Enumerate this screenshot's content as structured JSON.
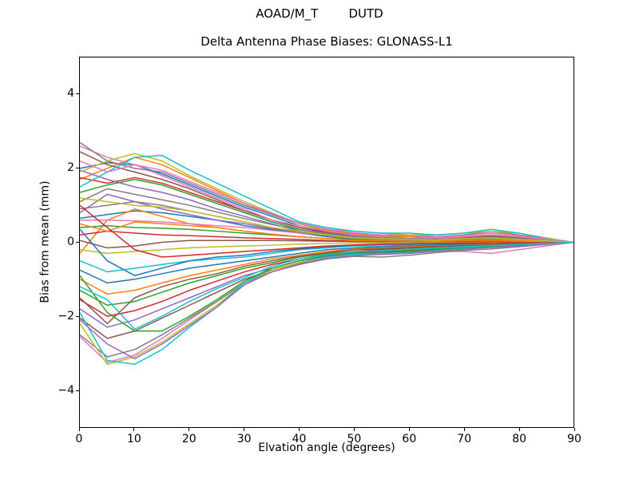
{
  "chart_data": {
    "type": "line",
    "suptitle": "AOAD/M_T        DUTD",
    "title": "Delta Antenna Phase Biases: GLONASS-L1",
    "xlabel": "Elvation angle (degrees)",
    "ylabel": "Bias from mean (mm)",
    "xlim": [
      0,
      90
    ],
    "ylim": [
      -5,
      5
    ],
    "grid": false,
    "legend": "none",
    "background_color": "#ffffff",
    "spine_color": "#000000",
    "xticks": {
      "values": [
        0,
        10,
        20,
        30,
        40,
        50,
        60,
        70,
        80,
        90
      ],
      "labels": [
        "0",
        "10",
        "20",
        "30",
        "40",
        "50",
        "60",
        "70",
        "80",
        "90"
      ]
    },
    "yticks": {
      "values": [
        -4,
        -2,
        0,
        2,
        4
      ],
      "labels": [
        "−4",
        "−2",
        "0",
        "2",
        "4"
      ]
    },
    "x": [
      0,
      5,
      10,
      15,
      20,
      25,
      30,
      35,
      40,
      45,
      50,
      55,
      60,
      65,
      70,
      75,
      80,
      85,
      90
    ],
    "series": [
      {
        "color": "#1f77b4",
        "values": [
          2.0,
          2.15,
          2.1,
          1.85,
          1.55,
          1.25,
          0.95,
          0.7,
          0.45,
          0.3,
          0.2,
          0.15,
          0.15,
          0.1,
          0.15,
          0.2,
          0.15,
          0.07,
          0
        ]
      },
      {
        "color": "#ff7f0e",
        "values": [
          1.7,
          2.0,
          2.3,
          2.1,
          1.75,
          1.4,
          1.05,
          0.75,
          0.5,
          0.32,
          0.22,
          0.18,
          0.15,
          0.12,
          0.18,
          0.25,
          0.18,
          0.08,
          0
        ]
      },
      {
        "color": "#2ca02c",
        "values": [
          1.35,
          1.55,
          1.7,
          1.55,
          1.3,
          1.05,
          0.8,
          0.55,
          0.35,
          0.22,
          0.15,
          0.1,
          0.1,
          0.08,
          0.1,
          0.15,
          0.1,
          0.05,
          0
        ]
      },
      {
        "color": "#d62728",
        "values": [
          1.75,
          1.6,
          1.75,
          1.6,
          1.35,
          1.1,
          0.85,
          0.6,
          0.4,
          0.25,
          0.15,
          0.1,
          0.08,
          0.06,
          0.1,
          0.15,
          0.1,
          0.05,
          0
        ]
      },
      {
        "color": "#9467bd",
        "values": [
          1.95,
          1.7,
          1.5,
          1.35,
          1.15,
          0.9,
          0.7,
          0.5,
          0.3,
          0.2,
          0.12,
          0.08,
          0.05,
          0.05,
          0.08,
          0.12,
          0.08,
          0.04,
          0
        ]
      },
      {
        "color": "#8c564b",
        "values": [
          2.45,
          2.1,
          1.9,
          1.7,
          1.45,
          1.15,
          0.85,
          0.6,
          0.4,
          0.28,
          0.18,
          0.12,
          0.1,
          0.08,
          0.12,
          0.18,
          0.12,
          0.06,
          0
        ]
      },
      {
        "color": "#e377c2",
        "values": [
          2.6,
          2.3,
          2.1,
          1.8,
          1.5,
          1.2,
          0.9,
          0.6,
          0.45,
          0.3,
          0.2,
          0.15,
          0.1,
          0.1,
          0.15,
          0.2,
          0.15,
          0.08,
          0
        ]
      },
      {
        "color": "#7f7f7f",
        "values": [
          2.7,
          2.2,
          2.0,
          1.9,
          1.6,
          1.3,
          1.0,
          0.75,
          0.5,
          0.35,
          0.25,
          0.2,
          0.2,
          0.15,
          0.2,
          0.3,
          0.2,
          0.1,
          0
        ]
      },
      {
        "color": "#bcbd22",
        "values": [
          1.9,
          2.2,
          2.4,
          2.2,
          1.8,
          1.45,
          1.1,
          0.8,
          0.5,
          0.35,
          0.3,
          0.25,
          0.2,
          0.2,
          0.25,
          0.3,
          0.25,
          0.12,
          0
        ]
      },
      {
        "color": "#17becf",
        "values": [
          1.5,
          1.9,
          2.3,
          2.35,
          1.95,
          1.6,
          1.25,
          0.9,
          0.55,
          0.4,
          0.3,
          0.25,
          0.25,
          0.2,
          0.25,
          0.35,
          0.25,
          0.1,
          0
        ]
      },
      {
        "color": "#1f77b4",
        "values": [
          0.65,
          0.75,
          0.85,
          0.8,
          0.7,
          0.6,
          0.45,
          0.35,
          0.25,
          0.15,
          0.1,
          0.05,
          0.05,
          0.04,
          0.06,
          0.08,
          0.06,
          0.03,
          0
        ]
      },
      {
        "color": "#ff7f0e",
        "values": [
          -0.3,
          0.6,
          0.9,
          0.7,
          0.5,
          0.4,
          0.3,
          0.22,
          0.15,
          0.1,
          0.08,
          0.06,
          0.05,
          0.04,
          0.05,
          0.06,
          0.04,
          0.02,
          0
        ]
      },
      {
        "color": "#2ca02c",
        "values": [
          0.4,
          0.45,
          0.4,
          0.38,
          0.35,
          0.3,
          0.25,
          0.2,
          0.15,
          0.1,
          0.08,
          0.05,
          0.05,
          0.04,
          0.05,
          0.06,
          0.04,
          0.02,
          0
        ]
      },
      {
        "color": "#d62728",
        "values": [
          0.2,
          0.3,
          0.25,
          0.2,
          0.18,
          0.15,
          0.12,
          0.1,
          0.08,
          0.05,
          0.03,
          0.02,
          0.02,
          0.02,
          0.03,
          0.04,
          0.03,
          0.01,
          0
        ]
      },
      {
        "color": "#9467bd",
        "values": [
          0.8,
          1.3,
          1.1,
          0.9,
          0.75,
          0.6,
          0.5,
          0.38,
          0.28,
          0.2,
          0.14,
          0.1,
          0.08,
          0.07,
          0.09,
          0.12,
          0.08,
          0.04,
          0
        ]
      },
      {
        "color": "#8c564b",
        "values": [
          0.05,
          -0.15,
          -0.1,
          0,
          0.05,
          0.05,
          0.05,
          0.05,
          0.04,
          0.03,
          0.02,
          0.02,
          0.02,
          0.02,
          0.02,
          0.03,
          0.02,
          0.01,
          0
        ]
      },
      {
        "color": "#e377c2",
        "values": [
          0.6,
          0.6,
          0.58,
          0.55,
          0.5,
          0.45,
          0.4,
          0.32,
          0.25,
          0.18,
          0.12,
          0.1,
          0.08,
          0.06,
          0.08,
          0.1,
          0.07,
          0.03,
          0
        ]
      },
      {
        "color": "#7f7f7f",
        "values": [
          0.9,
          1.0,
          1.1,
          1.0,
          0.85,
          0.7,
          0.55,
          0.4,
          0.28,
          0.18,
          0.1,
          0.08,
          0.05,
          0.05,
          0.08,
          0.1,
          0.07,
          0.03,
          0
        ]
      },
      {
        "color": "#bcbd22",
        "values": [
          -0.2,
          -0.3,
          -0.25,
          -0.2,
          -0.15,
          -0.12,
          -0.1,
          -0.08,
          -0.05,
          -0.03,
          -0.02,
          -0.02,
          -0.02,
          -0.01,
          -0.01,
          0,
          0,
          0,
          0
        ]
      },
      {
        "color": "#17becf",
        "values": [
          -0.5,
          -0.8,
          -0.7,
          -0.6,
          -0.5,
          -0.45,
          -0.4,
          -0.3,
          -0.2,
          -0.15,
          -0.1,
          -0.1,
          -0.08,
          -0.06,
          -0.05,
          -0.05,
          -0.04,
          -0.02,
          0
        ]
      },
      {
        "color": "#1f77b4",
        "values": [
          -0.75,
          -1.1,
          -1.0,
          -0.85,
          -0.7,
          -0.6,
          -0.5,
          -0.4,
          -0.3,
          -0.2,
          -0.15,
          -0.12,
          -0.1,
          -0.08,
          -0.06,
          -0.05,
          -0.04,
          -0.02,
          0
        ]
      },
      {
        "color": "#ff7f0e",
        "values": [
          -1.0,
          -1.4,
          -1.3,
          -1.1,
          -0.9,
          -0.75,
          -0.6,
          -0.45,
          -0.35,
          -0.25,
          -0.18,
          -0.15,
          -0.12,
          -0.1,
          -0.08,
          -0.06,
          -0.05,
          -0.02,
          0
        ]
      },
      {
        "color": "#2ca02c",
        "values": [
          -1.3,
          -1.7,
          -1.6,
          -1.35,
          -1.1,
          -0.9,
          -0.7,
          -0.55,
          -0.4,
          -0.3,
          -0.2,
          -0.18,
          -0.15,
          -0.12,
          -0.1,
          -0.08,
          -0.06,
          -0.03,
          0
        ]
      },
      {
        "color": "#d62728",
        "values": [
          -1.55,
          -2.0,
          -1.85,
          -1.6,
          -1.3,
          -1.05,
          -0.8,
          -0.6,
          -0.45,
          -0.32,
          -0.25,
          -0.2,
          -0.18,
          -0.14,
          -0.12,
          -0.1,
          -0.07,
          -0.03,
          0
        ]
      },
      {
        "color": "#9467bd",
        "values": [
          -1.8,
          -2.3,
          -2.1,
          -1.8,
          -1.5,
          -1.2,
          -0.9,
          -0.7,
          -0.5,
          -0.38,
          -0.28,
          -0.25,
          -0.2,
          -0.16,
          -0.13,
          -0.1,
          -0.08,
          -0.04,
          0
        ]
      },
      {
        "color": "#8c564b",
        "values": [
          -2.05,
          -2.6,
          -2.4,
          -2.05,
          -1.7,
          -1.35,
          -1.0,
          -0.75,
          -0.55,
          -0.4,
          -0.3,
          -0.28,
          -0.25,
          -0.2,
          -0.15,
          -0.12,
          -0.09,
          -0.04,
          0
        ]
      },
      {
        "color": "#e377c2",
        "values": [
          -2.55,
          -3.25,
          -3.05,
          -2.6,
          -2.1,
          -1.6,
          -1.1,
          -0.8,
          -0.6,
          -0.45,
          -0.35,
          -0.32,
          -0.3,
          -0.25,
          -0.25,
          -0.3,
          -0.2,
          -0.1,
          0
        ]
      },
      {
        "color": "#7f7f7f",
        "values": [
          -2.5,
          -3.1,
          -2.9,
          -2.5,
          -2.05,
          -1.6,
          -1.1,
          -0.8,
          -0.6,
          -0.45,
          -0.38,
          -0.4,
          -0.35,
          -0.28,
          -0.22,
          -0.18,
          -0.12,
          -0.06,
          0
        ]
      },
      {
        "color": "#bcbd22",
        "values": [
          -2.2,
          -3.3,
          -3.1,
          -2.7,
          -2.2,
          -1.7,
          -1.1,
          -0.75,
          -0.55,
          -0.42,
          -0.35,
          -0.32,
          -0.3,
          -0.24,
          -0.18,
          -0.14,
          -0.1,
          -0.05,
          0
        ]
      },
      {
        "color": "#17becf",
        "values": [
          -1.9,
          -3.2,
          -3.3,
          -2.9,
          -2.3,
          -1.75,
          -1.1,
          -0.7,
          -0.5,
          -0.4,
          -0.32,
          -0.3,
          -0.28,
          -0.22,
          -0.17,
          -0.13,
          -0.09,
          -0.04,
          0
        ]
      },
      {
        "color": "#1f77b4",
        "values": [
          0.35,
          -0.5,
          -0.9,
          -0.7,
          -0.5,
          -0.4,
          -0.35,
          -0.25,
          -0.18,
          -0.12,
          -0.08,
          -0.06,
          -0.05,
          -0.04,
          -0.03,
          -0.02,
          -0.02,
          -0.01,
          0
        ]
      },
      {
        "color": "#ff7f0e",
        "values": [
          0.5,
          0.3,
          0.55,
          0.5,
          0.45,
          0.4,
          0.3,
          0.22,
          0.15,
          0.1,
          0.05,
          0.05,
          0.03,
          0.03,
          0.05,
          0.06,
          0.04,
          0.02,
          0
        ]
      },
      {
        "color": "#2ca02c",
        "values": [
          -0.9,
          -1.9,
          -2.4,
          -2.4,
          -2.0,
          -1.55,
          -1.05,
          -0.7,
          -0.5,
          -0.35,
          -0.28,
          -0.25,
          -0.22,
          -0.18,
          -0.14,
          -0.1,
          -0.07,
          -0.03,
          0
        ]
      },
      {
        "color": "#d62728",
        "values": [
          1.0,
          0.4,
          -0.2,
          -0.4,
          -0.35,
          -0.3,
          -0.25,
          -0.2,
          -0.15,
          -0.1,
          -0.07,
          -0.05,
          -0.04,
          -0.03,
          -0.02,
          -0.02,
          -0.01,
          -0.01,
          0
        ]
      },
      {
        "color": "#9467bd",
        "values": [
          -2.1,
          -2.75,
          -3.15,
          -2.75,
          -2.25,
          -1.75,
          -1.15,
          -0.8,
          -0.58,
          -0.44,
          -0.36,
          -0.33,
          -0.3,
          -0.24,
          -0.19,
          -0.14,
          -0.1,
          -0.05,
          0
        ]
      },
      {
        "color": "#8c564b",
        "values": [
          -1.5,
          -2.2,
          -1.5,
          -1.2,
          -1.0,
          -0.85,
          -0.65,
          -0.5,
          -0.38,
          -0.28,
          -0.2,
          -0.17,
          -0.14,
          -0.11,
          -0.09,
          -0.07,
          -0.05,
          -0.02,
          0
        ]
      },
      {
        "color": "#e377c2",
        "values": [
          2.2,
          1.9,
          2.1,
          1.95,
          1.65,
          1.35,
          1.05,
          0.78,
          0.52,
          0.36,
          0.26,
          0.2,
          0.18,
          0.14,
          0.18,
          0.26,
          0.18,
          0.09,
          0
        ]
      },
      {
        "color": "#7f7f7f",
        "values": [
          1.1,
          1.45,
          1.3,
          1.15,
          1.0,
          0.82,
          0.64,
          0.48,
          0.34,
          0.24,
          0.16,
          0.12,
          0.1,
          0.08,
          0.1,
          0.14,
          0.1,
          0.05,
          0
        ]
      },
      {
        "color": "#bcbd22",
        "values": [
          1.2,
          1.1,
          1.0,
          0.95,
          0.85,
          0.7,
          0.55,
          0.4,
          0.3,
          0.2,
          0.12,
          0.1,
          0.08,
          0.06,
          0.1,
          0.12,
          0.08,
          0.04,
          0
        ]
      },
      {
        "color": "#17becf",
        "values": [
          -1.2,
          -1.55,
          -2.35,
          -2.0,
          -1.6,
          -1.25,
          -0.95,
          -0.65,
          -0.45,
          -0.33,
          -0.26,
          -0.22,
          -0.19,
          -0.15,
          -0.12,
          -0.09,
          -0.06,
          -0.03,
          0
        ]
      }
    ]
  }
}
